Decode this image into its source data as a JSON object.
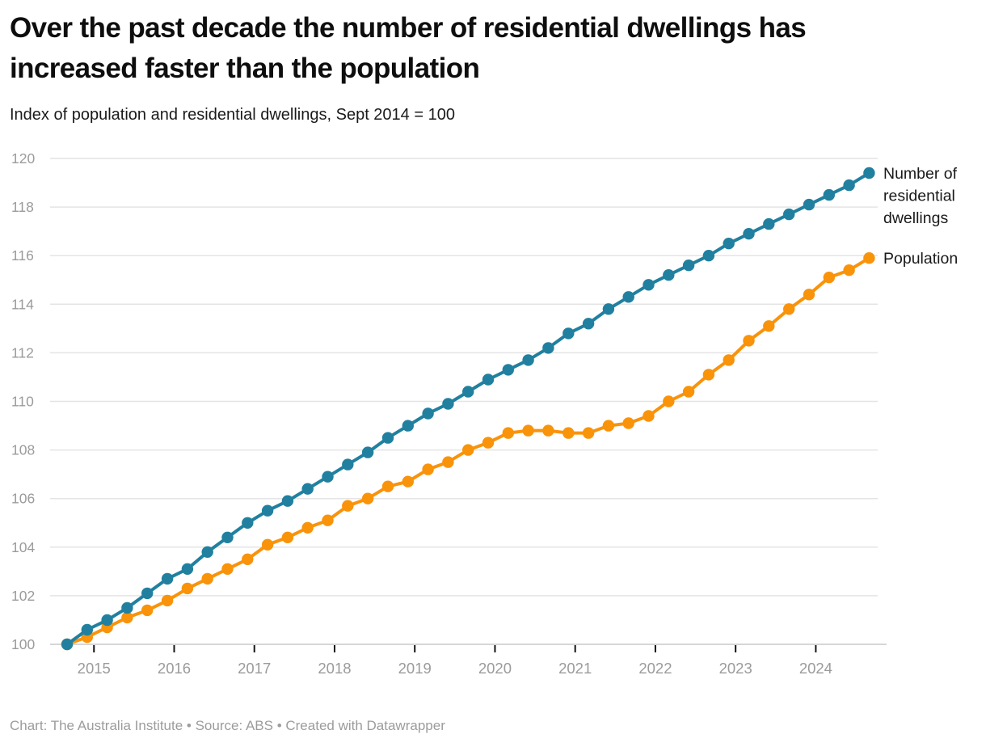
{
  "header": {
    "title": "Over the past decade the number of residential dwellings has increased faster than the population",
    "subtitle": "Index of population and residential dwellings, Sept 2014 = 100"
  },
  "footer": {
    "text": "Chart: The Australia Institute  • Source: ABS • Created with Datawrapper"
  },
  "chart_data": {
    "type": "line",
    "title": "Over the past decade the number of residential dwellings has increased faster than the population",
    "subtitle": "Index of population and residential dwellings, Sept 2014 = 100",
    "x_unit": "quarter",
    "x": [
      "Sep 2014",
      "Dec 2014",
      "Mar 2015",
      "Jun 2015",
      "Sep 2015",
      "Dec 2015",
      "Mar 2016",
      "Jun 2016",
      "Sep 2016",
      "Dec 2016",
      "Mar 2017",
      "Jun 2017",
      "Sep 2017",
      "Dec 2017",
      "Mar 2018",
      "Jun 2018",
      "Sep 2018",
      "Dec 2018",
      "Mar 2019",
      "Jun 2019",
      "Sep 2019",
      "Dec 2019",
      "Mar 2020",
      "Jun 2020",
      "Sep 2020",
      "Dec 2020",
      "Mar 2021",
      "Jun 2021",
      "Sep 2021",
      "Dec 2021",
      "Mar 2022",
      "Jun 2022",
      "Sep 2022",
      "Dec 2022",
      "Mar 2023",
      "Jun 2023",
      "Sep 2023",
      "Dec 2023",
      "Mar 2024",
      "Jun 2024",
      "Sep 2024"
    ],
    "x_tick_years": [
      "2015",
      "2016",
      "2017",
      "2018",
      "2019",
      "2020",
      "2021",
      "2022",
      "2023",
      "2024"
    ],
    "ylim": [
      100,
      120
    ],
    "y_ticks": [
      100,
      102,
      104,
      106,
      108,
      110,
      112,
      114,
      116,
      118,
      120
    ],
    "grid": true,
    "legend_position": "right-of-line-ends",
    "marker": "circle",
    "series": [
      {
        "name": "Population",
        "color": "#f9930a",
        "values": [
          100.0,
          100.3,
          100.7,
          101.1,
          101.4,
          101.8,
          102.3,
          102.7,
          103.1,
          103.5,
          104.1,
          104.4,
          104.8,
          105.1,
          105.7,
          106.0,
          106.5,
          106.7,
          107.2,
          107.5,
          108.0,
          108.3,
          108.7,
          108.8,
          108.8,
          108.7,
          108.7,
          109.0,
          109.1,
          109.4,
          110.0,
          110.4,
          111.1,
          111.7,
          112.5,
          113.1,
          113.8,
          114.4,
          115.1,
          115.4,
          115.9
        ]
      },
      {
        "name": "Number of residential dwellings",
        "color": "#21809f",
        "values": [
          100.0,
          100.6,
          101.0,
          101.5,
          102.1,
          102.7,
          103.1,
          103.8,
          104.4,
          105.0,
          105.5,
          105.9,
          106.4,
          106.9,
          107.4,
          107.9,
          108.5,
          109.0,
          109.5,
          109.9,
          110.4,
          110.9,
          111.3,
          111.7,
          112.2,
          112.8,
          113.2,
          113.8,
          114.3,
          114.8,
          115.2,
          115.6,
          116.0,
          116.5,
          116.9,
          117.3,
          117.7,
          118.1,
          118.5,
          118.9,
          119.4
        ]
      }
    ]
  }
}
